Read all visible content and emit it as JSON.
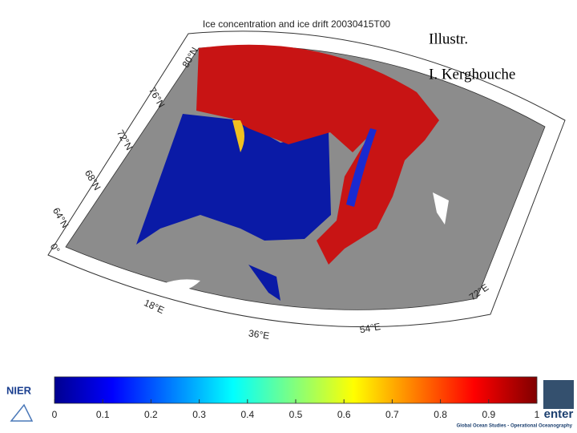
{
  "map": {
    "title": "Ice concentration and ice drift 20030415T00",
    "latitude_labels": [
      "80°N",
      "76°N",
      "72°N",
      "68°N",
      "64°N",
      "0°"
    ],
    "longitude_labels": [
      "18°E",
      "36°E",
      "54°E",
      "72°E"
    ],
    "credit": [
      "Illustr.",
      "I. Kerghouche"
    ]
  },
  "colorbar": {
    "lim": [
      0,
      1
    ],
    "ticks": [
      0,
      0.1,
      0.2,
      0.3,
      0.4,
      0.5,
      0.6,
      0.7,
      0.8,
      0.9,
      1
    ]
  },
  "logos": {
    "left": "NIER",
    "right": "enter",
    "right_subtitle": "Global Ocean Studies - Operational Oceanography"
  }
}
